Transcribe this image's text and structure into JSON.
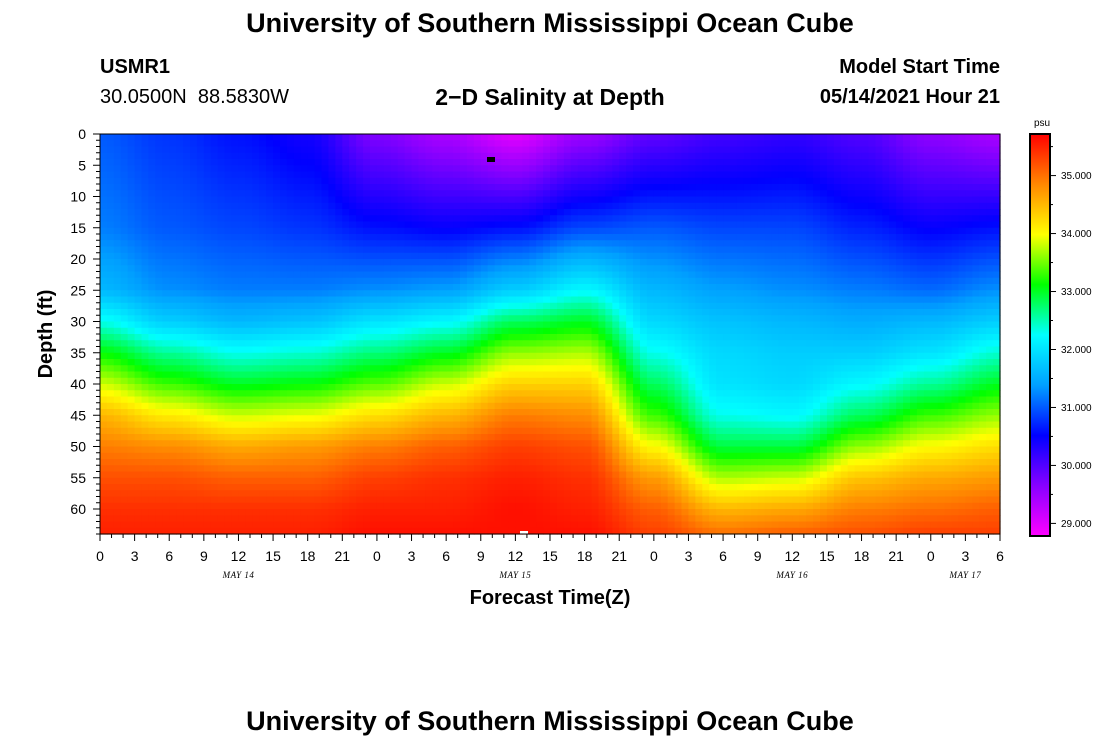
{
  "header": {
    "title": "University of Southern Mississippi Ocean Cube",
    "station": "USMR1",
    "coords": "30.0500N  88.5830W",
    "subtitle": "2−D Salinity at Depth",
    "start_label": "Model Start Time",
    "start_value": "05/14/2021 Hour 21"
  },
  "footer": {
    "title": "University of Southern Mississippi Ocean Cube"
  },
  "chart_data": {
    "type": "heatmap",
    "title": "2-D Salinity at Depth",
    "xlabel": "Forecast Time(Z)",
    "ylabel": "Depth (ft)",
    "x_range_hours": [
      0,
      78
    ],
    "y_range_ft": [
      0,
      64
    ],
    "x_tick_labels": [
      "0",
      "3",
      "6",
      "9",
      "12",
      "15",
      "18",
      "21",
      "0",
      "3",
      "6",
      "9",
      "12",
      "15",
      "18",
      "21",
      "0",
      "3",
      "6",
      "9",
      "12",
      "15",
      "18",
      "21",
      "0",
      "3",
      "6"
    ],
    "y_tick_values": [
      0,
      5,
      10,
      15,
      20,
      25,
      30,
      35,
      40,
      45,
      50,
      55,
      60
    ],
    "date_labels": [
      {
        "text": "MAY 14",
        "hour": 12
      },
      {
        "text": "MAY 15",
        "hour": 36
      },
      {
        "text": "MAY 16",
        "hour": 60
      },
      {
        "text": "MAY 17",
        "hour": 75
      }
    ],
    "colorbar": {
      "unit": "psu",
      "min": 28.8,
      "max": 35.7,
      "tick_values": [
        29.0,
        30.0,
        31.0,
        32.0,
        33.0,
        34.0,
        35.0
      ],
      "tick_labels": [
        "29.000",
        "30.000",
        "31.000",
        "32.000",
        "33.000",
        "34.000",
        "35.000"
      ],
      "colors": [
        "#ff00ff",
        "#8800ff",
        "#0000ff",
        "#00a0ff",
        "#00ffff",
        "#00ff00",
        "#ffff00",
        "#ff8800",
        "#ff0000"
      ]
    },
    "salinity_profiles": [
      {
        "hour": 0,
        "surface": 31.0,
        "d15": 31.2,
        "d25": 31.6,
        "d30": 32.3,
        "d35": 33.1,
        "d40": 33.8,
        "d45": 34.5,
        "d50": 34.9,
        "d55": 35.2,
        "d60": 35.4,
        "d64": 35.5
      },
      {
        "hour": 6,
        "surface": 30.8,
        "d15": 31.0,
        "d25": 31.3,
        "d30": 31.8,
        "d35": 32.6,
        "d40": 33.3,
        "d45": 34.1,
        "d50": 34.8,
        "d55": 35.2,
        "d60": 35.4,
        "d64": 35.5
      },
      {
        "hour": 12,
        "surface": 30.6,
        "d15": 30.9,
        "d25": 31.2,
        "d30": 31.6,
        "d35": 32.3,
        "d40": 33.0,
        "d45": 33.8,
        "d50": 34.6,
        "d55": 35.1,
        "d60": 35.4,
        "d64": 35.5
      },
      {
        "hour": 18,
        "surface": 30.4,
        "d15": 30.8,
        "d25": 31.2,
        "d30": 31.7,
        "d35": 32.4,
        "d40": 33.1,
        "d45": 33.9,
        "d50": 34.7,
        "d55": 35.1,
        "d60": 35.4,
        "d64": 35.5
      },
      {
        "hour": 24,
        "surface": 29.7,
        "d15": 30.6,
        "d25": 31.3,
        "d30": 32.0,
        "d35": 32.7,
        "d40": 33.4,
        "d45": 34.2,
        "d50": 34.9,
        "d55": 35.3,
        "d60": 35.5,
        "d64": 35.6
      },
      {
        "hour": 30,
        "surface": 29.4,
        "d15": 30.5,
        "d25": 31.4,
        "d30": 32.2,
        "d35": 33.0,
        "d40": 33.8,
        "d45": 34.5,
        "d50": 35.1,
        "d55": 35.4,
        "d60": 35.5,
        "d64": 35.6
      },
      {
        "hour": 36,
        "surface": 29.0,
        "d15": 30.6,
        "d25": 31.8,
        "d30": 32.8,
        "d35": 33.6,
        "d40": 34.3,
        "d45": 34.9,
        "d50": 35.3,
        "d55": 35.5,
        "d60": 35.6,
        "d64": 35.6
      },
      {
        "hour": 42,
        "surface": 29.5,
        "d15": 30.9,
        "d25": 32.2,
        "d30": 33.0,
        "d35": 33.7,
        "d40": 34.3,
        "d45": 34.8,
        "d50": 35.2,
        "d55": 35.4,
        "d60": 35.5,
        "d64": 35.6
      },
      {
        "hour": 48,
        "surface": 29.9,
        "d15": 31.0,
        "d25": 31.6,
        "d30": 31.9,
        "d35": 32.3,
        "d40": 32.8,
        "d45": 33.3,
        "d50": 34.0,
        "d55": 34.7,
        "d60": 35.1,
        "d64": 35.3
      },
      {
        "hour": 54,
        "surface": 30.1,
        "d15": 30.9,
        "d25": 31.4,
        "d30": 31.7,
        "d35": 31.9,
        "d40": 32.0,
        "d45": 32.3,
        "d50": 32.9,
        "d55": 33.7,
        "d60": 34.5,
        "d64": 35.0
      },
      {
        "hour": 60,
        "surface": 30.2,
        "d15": 30.9,
        "d25": 31.3,
        "d30": 31.6,
        "d35": 31.8,
        "d40": 31.9,
        "d45": 32.2,
        "d50": 32.9,
        "d55": 33.8,
        "d60": 34.6,
        "d64": 35.1
      },
      {
        "hour": 66,
        "surface": 30.0,
        "d15": 30.7,
        "d25": 31.2,
        "d30": 31.5,
        "d35": 31.8,
        "d40": 32.2,
        "d45": 32.8,
        "d50": 33.6,
        "d55": 34.4,
        "d60": 34.9,
        "d64": 35.2
      },
      {
        "hour": 72,
        "surface": 29.6,
        "d15": 30.5,
        "d25": 31.1,
        "d30": 31.6,
        "d35": 32.0,
        "d40": 32.6,
        "d45": 33.3,
        "d50": 34.0,
        "d55": 34.6,
        "d60": 35.0,
        "d64": 35.3
      },
      {
        "hour": 78,
        "surface": 29.4,
        "d15": 30.6,
        "d25": 31.3,
        "d30": 31.8,
        "d35": 32.4,
        "d40": 33.0,
        "d45": 33.6,
        "d50": 34.2,
        "d55": 34.7,
        "d60": 35.1,
        "d64": 35.3
      }
    ]
  }
}
